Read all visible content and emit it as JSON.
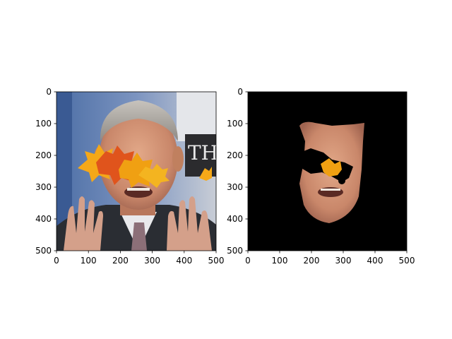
{
  "figure": {
    "background": "#ffffff"
  },
  "chart_data": [
    {
      "type": "image",
      "content": "photo-with-leaf-overlay",
      "xlim": [
        0,
        500
      ],
      "ylim": [
        500,
        0
      ],
      "xticks": [
        0,
        100,
        200,
        300,
        400,
        500
      ],
      "yticks": [
        0,
        100,
        200,
        300,
        400,
        500
      ],
      "title": "",
      "xlabel": "",
      "ylabel": ""
    },
    {
      "type": "image",
      "content": "segmented-face-mask",
      "xlim": [
        0,
        500
      ],
      "ylim": [
        500,
        0
      ],
      "xticks": [
        0,
        100,
        200,
        300,
        400,
        500
      ],
      "yticks": [
        0,
        100,
        200,
        300,
        400,
        500
      ],
      "background": "#000000",
      "title": "",
      "xlabel": "",
      "ylabel": ""
    }
  ]
}
